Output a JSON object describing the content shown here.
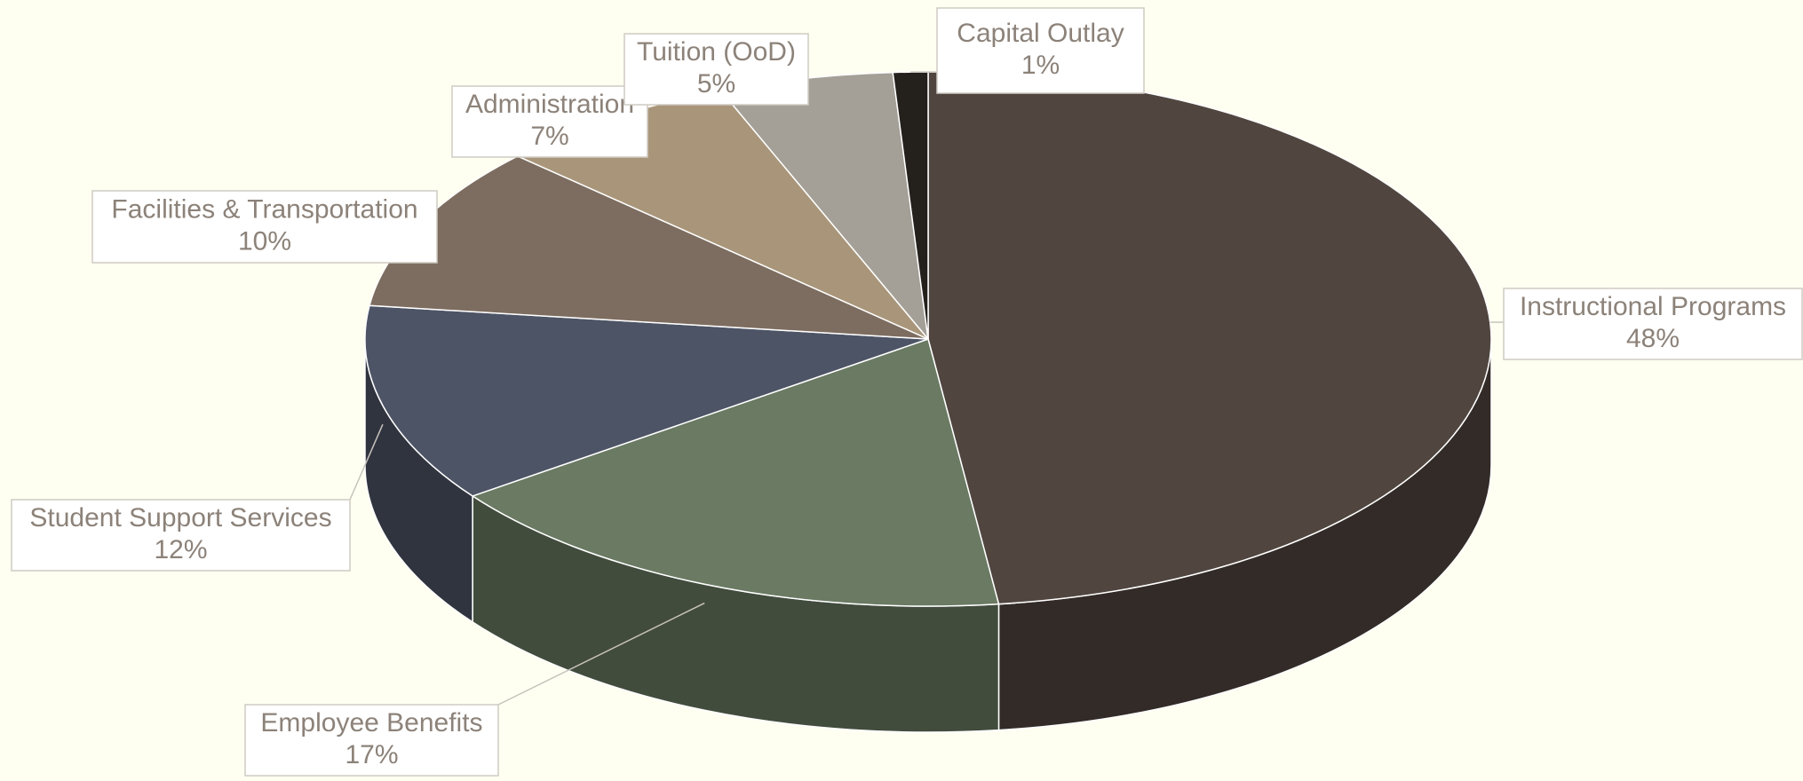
{
  "chart_data": {
    "type": "pie3d",
    "categories": [
      "Instructional Programs",
      "Employee Benefits",
      "Student Support Services",
      "Facilities & Transportation",
      "Administration",
      "Tuition (OoD)",
      "Capital Outlay"
    ],
    "values": [
      48,
      17,
      12,
      10,
      7,
      5,
      1
    ],
    "value_labels": [
      "48%",
      "17%",
      "12%",
      "10%",
      "7%",
      "5%",
      "1%"
    ],
    "colors": [
      "#50463f",
      "#6a7a63",
      "#4d5465",
      "#7d6d60",
      "#a9967a",
      "#a4a097",
      "#24201c"
    ]
  }
}
